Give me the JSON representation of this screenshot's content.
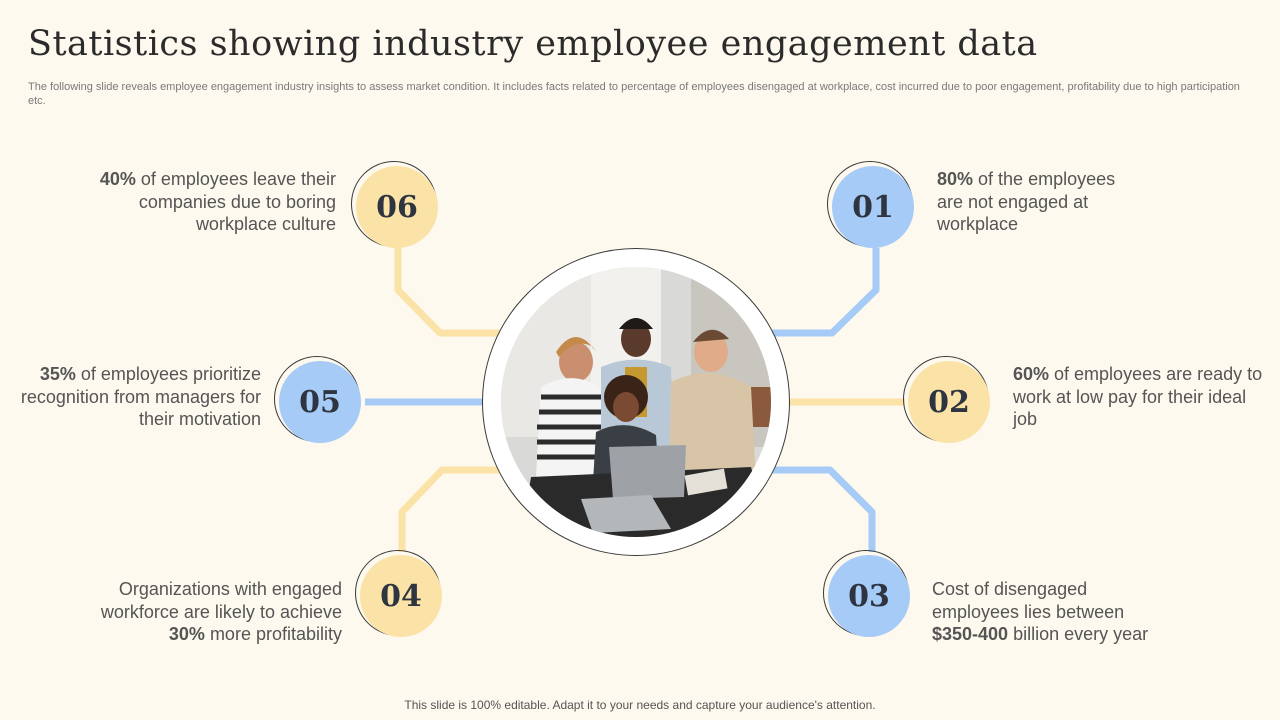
{
  "title": "Statistics showing industry employee engagement data",
  "subtitle": "The following slide reveals employee engagement industry insights to assess market condition. It includes facts related to percentage of employees disengaged at workplace, cost incurred due to poor engagement, profitability due to high participation etc.",
  "footer": "This slide is 100% editable. Adapt it to your needs and capture your audience's attention.",
  "colors": {
    "yellow": "#fbe3a8",
    "blue": "#a6cbf7",
    "background": "#fdf9ee"
  },
  "items": {
    "s01": {
      "number": "01",
      "highlight": "80%",
      "rest": " of the employees are not engaged at workplace",
      "color": "blue"
    },
    "s02": {
      "number": "02",
      "highlight": "60%",
      "rest": " of employees are ready to work at low pay for their ideal job",
      "color": "yellow"
    },
    "s03": {
      "number": "03",
      "lead": "Cost of disengaged employees lies between ",
      "highlight": "$350-400",
      "rest": " billion every year",
      "color": "blue"
    },
    "s04": {
      "number": "04",
      "lead": "Organizations with engaged workforce are likely to achieve ",
      "highlight": "30%",
      "rest": " more profitability",
      "color": "yellow"
    },
    "s05": {
      "number": "05",
      "highlight": "35%",
      "rest": " of employees prioritize recognition from managers for their motivation",
      "color": "blue"
    },
    "s06": {
      "number": "06",
      "highlight": "40%",
      "rest": " of employees leave their companies due to boring workplace culture",
      "color": "yellow"
    }
  }
}
